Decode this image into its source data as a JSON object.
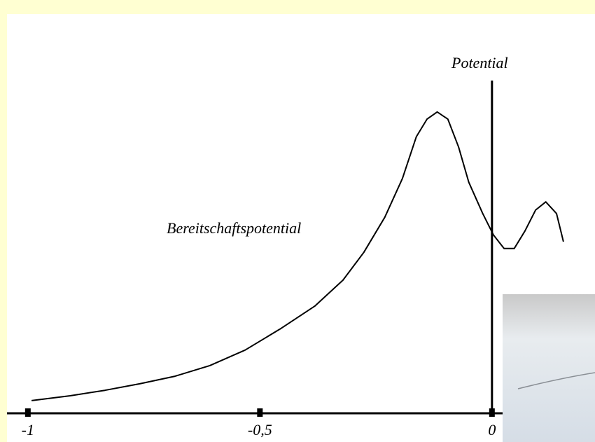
{
  "chart_data": {
    "type": "line",
    "y_label": "Potential",
    "annotation": "Bereitschaftspotential",
    "x": [
      -0.992,
      -0.909,
      -0.834,
      -0.759,
      -0.683,
      -0.608,
      -0.532,
      -0.457,
      -0.382,
      -0.321,
      -0.276,
      -0.231,
      -0.193,
      -0.163,
      -0.14,
      -0.118,
      -0.095,
      -0.072,
      -0.05,
      -0.02,
      0.003,
      0.026,
      0.048,
      0.071,
      0.094,
      0.116,
      0.139,
      0.154
    ],
    "values": [
      3.7,
      5.1,
      6.7,
      8.6,
      10.8,
      13.9,
      18.4,
      24.5,
      31.2,
      38.8,
      46.9,
      57.1,
      68.4,
      80.6,
      85.7,
      87.8,
      85.7,
      77.6,
      67.3,
      58.2,
      52.0,
      48.0,
      48.0,
      53.1,
      59.2,
      61.6,
      58.2,
      50.0
    ],
    "color": "#000000",
    "xlim": [
      -1.045,
      0.222
    ],
    "ylim": [
      0,
      100
    ],
    "xticks": [
      {
        "value": -1,
        "label": "-1"
      },
      {
        "value": -0.5,
        "label": "-0,5"
      },
      0
    ]
  }
}
